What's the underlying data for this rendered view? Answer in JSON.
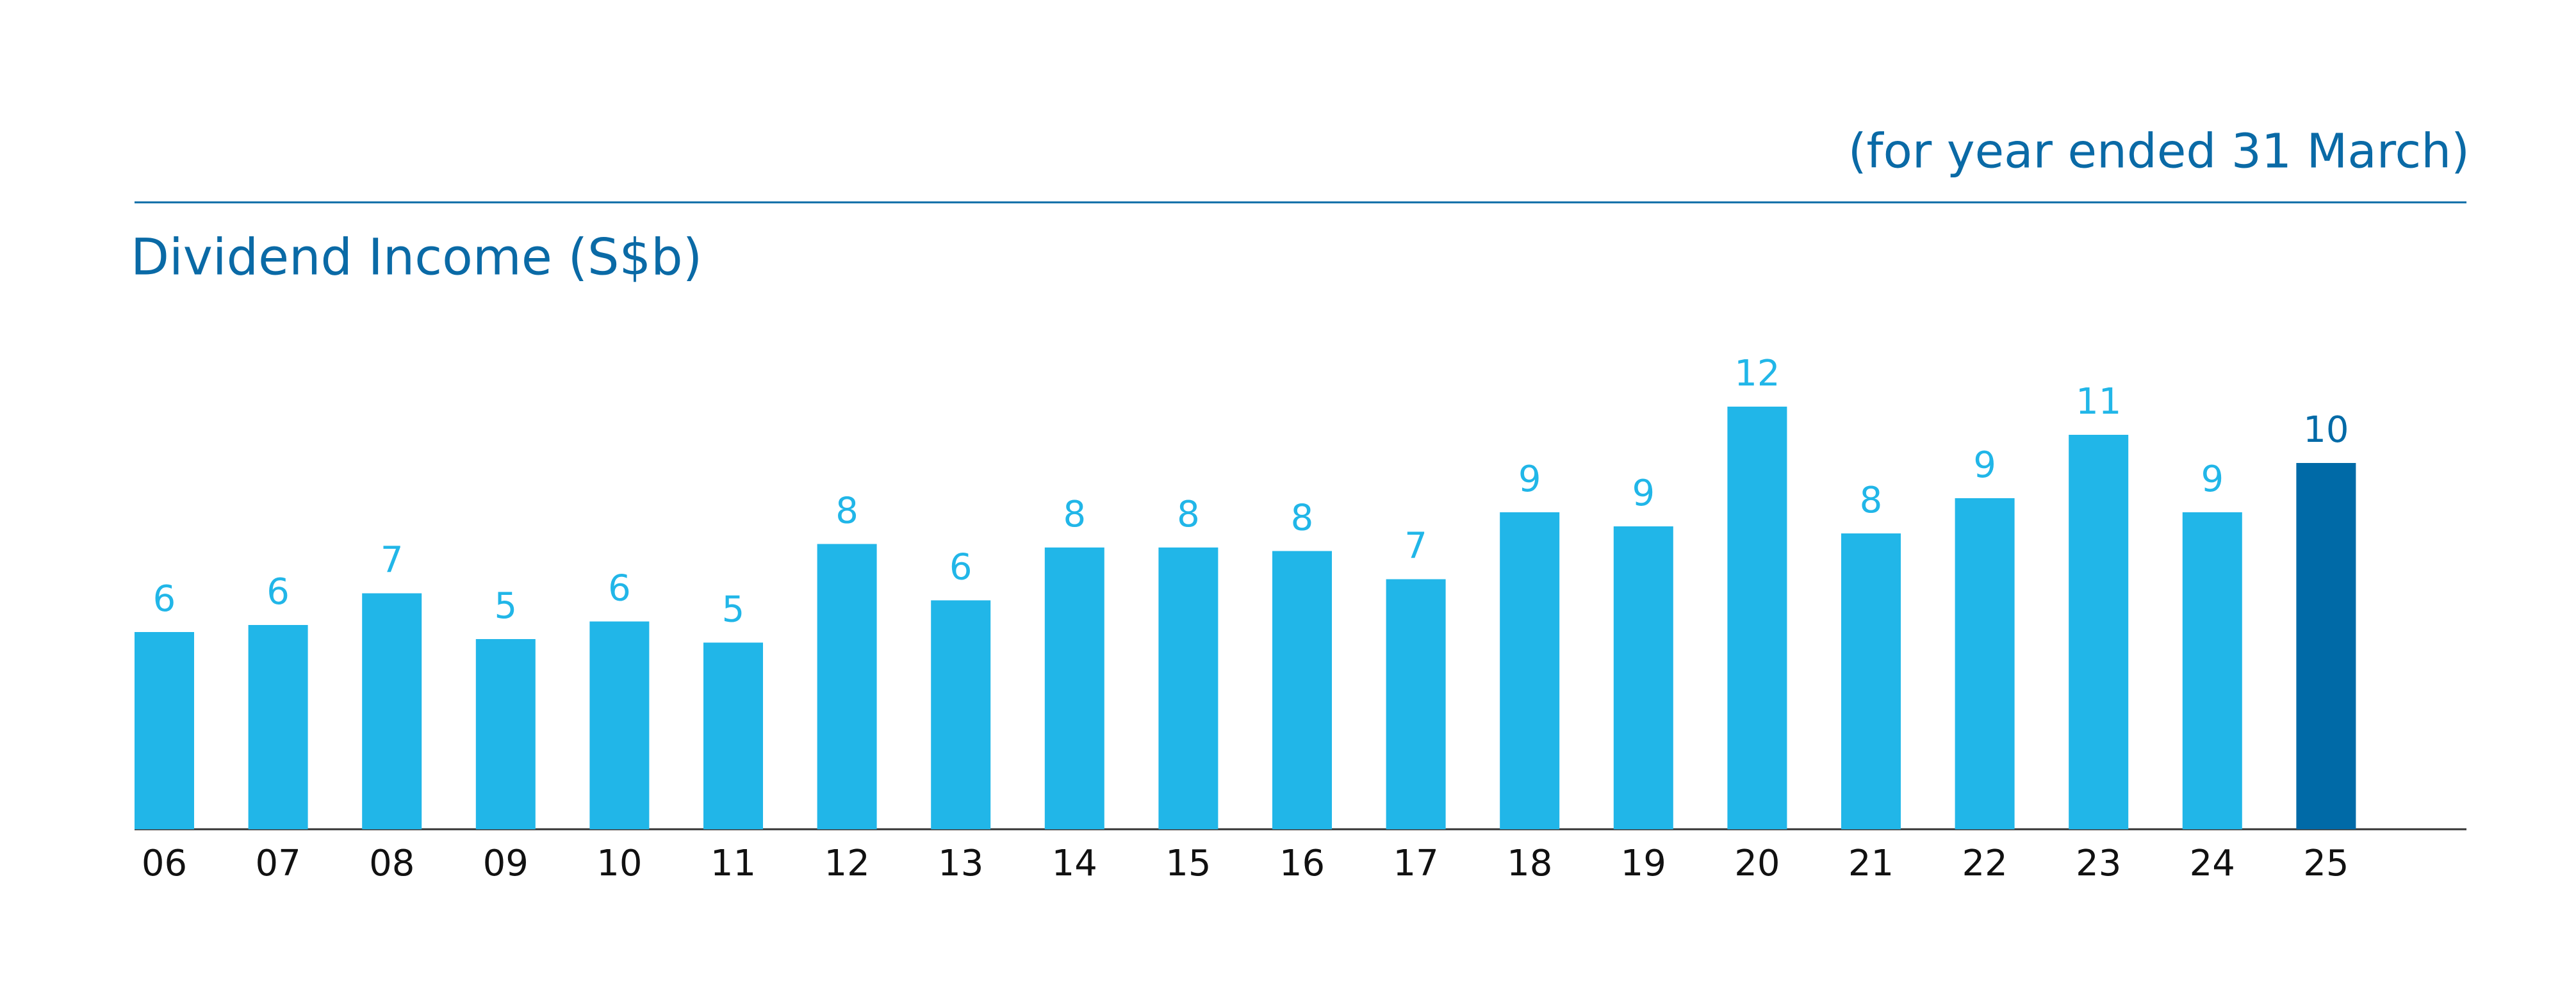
{
  "chart_data": {
    "type": "bar",
    "title": "Dividend Income (S$b)",
    "subtitle": "(for year ended 31 March)",
    "categories": [
      "06",
      "07",
      "08",
      "09",
      "10",
      "11",
      "12",
      "13",
      "14",
      "15",
      "16",
      "17",
      "18",
      "19",
      "20",
      "21",
      "22",
      "23",
      "24",
      "25"
    ],
    "values": [
      5.6,
      5.8,
      6.7,
      5.4,
      5.9,
      5.3,
      8.1,
      6.5,
      8.0,
      8.0,
      7.9,
      7.1,
      9.0,
      8.6,
      12.0,
      8.4,
      9.4,
      11.2,
      9.0,
      10.4
    ],
    "value_labels": [
      "6",
      "6",
      "7",
      "5",
      "6",
      "5",
      "8",
      "6",
      "8",
      "8",
      "8",
      "7",
      "9",
      "9",
      "12",
      "8",
      "9",
      "11",
      "9",
      "10"
    ],
    "colors": [
      "#21b6e8",
      "#21b6e8",
      "#21b6e8",
      "#21b6e8",
      "#21b6e8",
      "#21b6e8",
      "#21b6e8",
      "#21b6e8",
      "#21b6e8",
      "#21b6e8",
      "#21b6e8",
      "#21b6e8",
      "#21b6e8",
      "#21b6e8",
      "#21b6e8",
      "#21b6e8",
      "#21b6e8",
      "#21b6e8",
      "#21b6e8",
      "#006aa7"
    ]
  }
}
